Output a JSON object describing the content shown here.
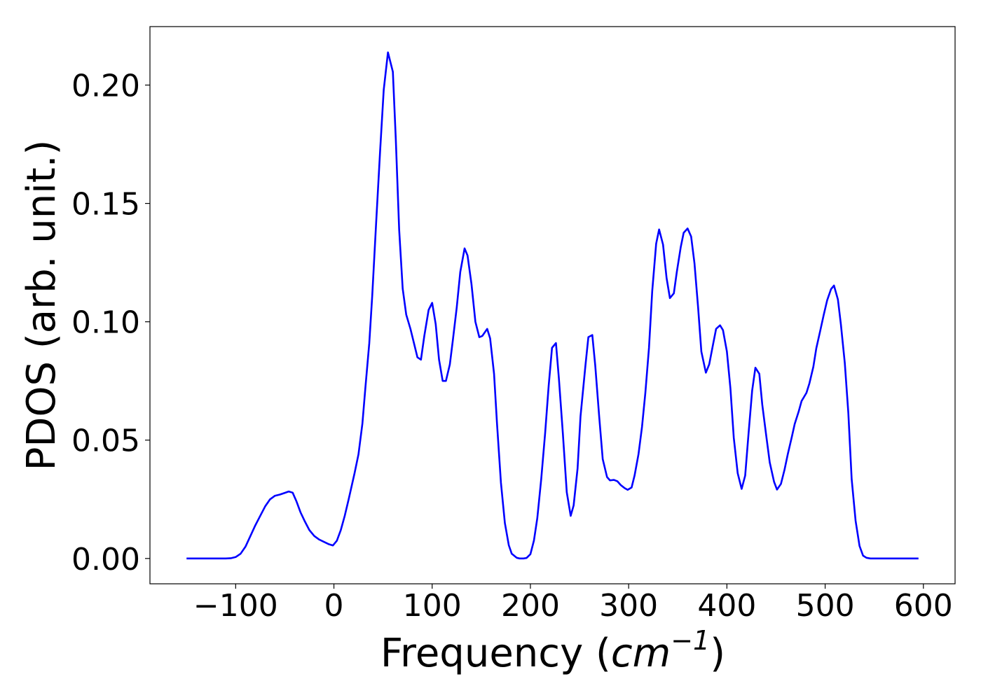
{
  "chart_data": {
    "type": "line",
    "xlabel": [
      "Frequency (",
      "cm",
      "−1",
      ")"
    ],
    "ylabel": "PDOS (arb. unit.)",
    "xlim": [
      -187.25,
      632.25
    ],
    "ylim": [
      -0.0107,
      0.2247
    ],
    "xticks": [
      {
        "value": -100,
        "label": "−100"
      },
      0,
      100,
      200,
      300,
      400,
      500,
      600
    ],
    "yticks": [
      {
        "value": 0,
        "label": "0.00"
      },
      {
        "value": 0.05,
        "label": "0.05"
      },
      {
        "value": 0.1,
        "label": "0.10"
      },
      {
        "value": 0.15,
        "label": "0.15"
      },
      {
        "value": 0.2,
        "label": "0.20"
      }
    ],
    "grid": false,
    "x": [
      -150,
      -140,
      -130,
      -120,
      -110,
      -105,
      -100,
      -95,
      -90,
      -85,
      -80,
      -75,
      -70,
      -65,
      -60,
      -55,
      -50,
      -46,
      -42,
      -38,
      -34,
      -30,
      -25,
      -20,
      -15,
      -10,
      -5,
      -1,
      3,
      7,
      11,
      15,
      21,
      25,
      29,
      32,
      36,
      39,
      43,
      47,
      50.7,
      55,
      60,
      63,
      66.4,
      70,
      73.6,
      77.9,
      85,
      88.6,
      92,
      96.4,
      100,
      103.6,
      107,
      110.7,
      114,
      118,
      121,
      125,
      128.6,
      133,
      136,
      140,
      144,
      148,
      151,
      156,
      159,
      163,
      166,
      170,
      174,
      178,
      181,
      186,
      189,
      193,
      196,
      200,
      203.6,
      207,
      211,
      215,
      218.6,
      222,
      226,
      229,
      233,
      237,
      241,
      244,
      248,
      251,
      256,
      259,
      263,
      266,
      270,
      273.6,
      278,
      281,
      285,
      288.6,
      292,
      296,
      299,
      303,
      306,
      310,
      313.6,
      317,
      320.7,
      324,
      328,
      331,
      335,
      338.6,
      342,
      346,
      349,
      353,
      356,
      360,
      363.6,
      367,
      370.7,
      374,
      378.6,
      382,
      385.7,
      389,
      393,
      396,
      400,
      403.6,
      407,
      411,
      415,
      418.6,
      422,
      425.7,
      429,
      433,
      436,
      440,
      443.6,
      448,
      451,
      455,
      458.6,
      462,
      466,
      469,
      473,
      476,
      481,
      484,
      488,
      491,
      495,
      498.6,
      502,
      506,
      509,
      513,
      516,
      520,
      523.6,
      527,
      531,
      535,
      538.6,
      542,
      546,
      560,
      580,
      595
    ],
    "series": [
      {
        "name": "PDOS",
        "color": "#0000ff",
        "values": [
          0,
          0,
          0,
          0,
          0,
          0.0001,
          0.0006,
          0.002,
          0.005,
          0.0095,
          0.014,
          0.018,
          0.022,
          0.025,
          0.0265,
          0.027,
          0.0277,
          0.0283,
          0.0278,
          0.024,
          0.0195,
          0.016,
          0.012,
          0.0095,
          0.008,
          0.007,
          0.006,
          0.0055,
          0.0075,
          0.012,
          0.018,
          0.025,
          0.036,
          0.044,
          0.057,
          0.072,
          0.091,
          0.111,
          0.142,
          0.172,
          0.198,
          0.2138,
          0.2056,
          0.177,
          0.139,
          0.114,
          0.103,
          0.097,
          0.085,
          0.084,
          0.094,
          0.105,
          0.108,
          0.099,
          0.084,
          0.075,
          0.075,
          0.082,
          0.092,
          0.106,
          0.121,
          0.131,
          0.128,
          0.116,
          0.1,
          0.0935,
          0.094,
          0.097,
          0.093,
          0.078,
          0.057,
          0.032,
          0.015,
          0.0056,
          0.002,
          0.0003,
          0,
          0,
          0.0002,
          0.0018,
          0.0076,
          0.017,
          0.0335,
          0.053,
          0.073,
          0.089,
          0.091,
          0.076,
          0.053,
          0.028,
          0.018,
          0.0224,
          0.038,
          0.06,
          0.0815,
          0.0935,
          0.0944,
          0.0815,
          0.06,
          0.042,
          0.0344,
          0.033,
          0.0332,
          0.0326,
          0.031,
          0.0297,
          0.029,
          0.03,
          0.035,
          0.044,
          0.0556,
          0.07,
          0.089,
          0.113,
          0.133,
          0.139,
          0.1326,
          0.1185,
          0.11,
          0.112,
          0.121,
          0.1315,
          0.1376,
          0.1394,
          0.136,
          0.1247,
          0.106,
          0.0874,
          0.0785,
          0.082,
          0.09,
          0.097,
          0.0985,
          0.0965,
          0.0874,
          0.0718,
          0.051,
          0.036,
          0.0294,
          0.035,
          0.0526,
          0.0709,
          0.0806,
          0.078,
          0.065,
          0.052,
          0.0406,
          0.0324,
          0.0291,
          0.0315,
          0.0374,
          0.0441,
          0.0512,
          0.0568,
          0.062,
          0.0665,
          0.07,
          0.074,
          0.081,
          0.0888,
          0.0962,
          0.103,
          0.109,
          0.1138,
          0.1153,
          0.1094,
          0.099,
          0.0826,
          0.0615,
          0.0335,
          0.0159,
          0.0053,
          0.0012,
          0.0003,
          0,
          0,
          0,
          0
        ]
      }
    ]
  }
}
